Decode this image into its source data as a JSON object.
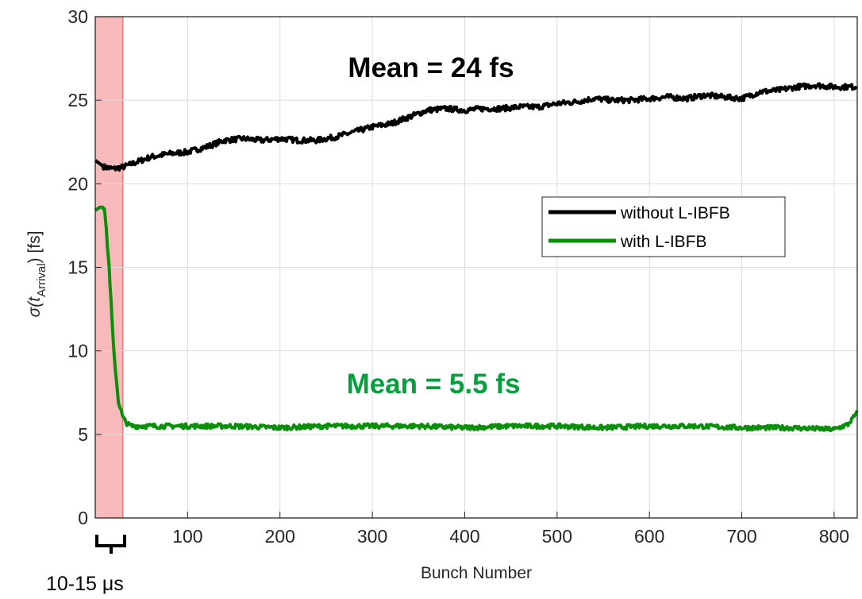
{
  "chart_data": {
    "type": "line",
    "xlabel": "Bunch Number",
    "ylabel_main": "σ(t",
    "ylabel_sub": "Arrival",
    "ylabel_end": ") [fs]",
    "xlim": [
      0,
      825
    ],
    "ylim": [
      0,
      30
    ],
    "xticks": [
      100,
      200,
      300,
      400,
      500,
      600,
      700,
      800
    ],
    "yticks": [
      0,
      5,
      10,
      15,
      20,
      25,
      30
    ],
    "grid": true,
    "legend_position": "right-middle",
    "shaded_region": {
      "x": [
        0,
        30
      ],
      "color": "#f08080",
      "label": "10-15 μs"
    },
    "annotations": [
      {
        "text": "Mean = 24 fs",
        "color": "#000000"
      },
      {
        "text": "Mean = 5.5 fs",
        "color": "#00a03c"
      }
    ],
    "series": [
      {
        "name": "without L-IBFB",
        "color": "#000000",
        "x": [
          0,
          10,
          20,
          30,
          40,
          60,
          80,
          100,
          120,
          140,
          160,
          180,
          200,
          220,
          240,
          260,
          280,
          300,
          320,
          340,
          360,
          380,
          400,
          420,
          440,
          460,
          480,
          500,
          520,
          540,
          560,
          580,
          600,
          620,
          640,
          660,
          680,
          700,
          720,
          740,
          760,
          780,
          800,
          825
        ],
        "y": [
          21.4,
          21.0,
          20.9,
          21.0,
          21.2,
          21.6,
          21.8,
          21.9,
          22.2,
          22.6,
          22.7,
          22.6,
          22.7,
          22.6,
          22.6,
          22.8,
          23.1,
          23.4,
          23.6,
          24.0,
          24.4,
          24.5,
          24.4,
          24.5,
          24.5,
          24.6,
          24.6,
          24.8,
          24.9,
          25.1,
          25.0,
          25.0,
          25.1,
          25.2,
          25.1,
          25.3,
          25.2,
          25.1,
          25.5,
          25.6,
          25.8,
          25.9,
          25.8,
          25.8
        ]
      },
      {
        "name": "with L-IBFB",
        "color": "#0a8f0a",
        "x": [
          0,
          5,
          10,
          15,
          20,
          25,
          30,
          35,
          40,
          60,
          80,
          100,
          150,
          200,
          250,
          300,
          350,
          400,
          450,
          500,
          550,
          600,
          650,
          700,
          750,
          800,
          815,
          825
        ],
        "y": [
          18.4,
          18.6,
          18.6,
          15.0,
          10.0,
          7.0,
          6.0,
          5.6,
          5.5,
          5.5,
          5.5,
          5.5,
          5.5,
          5.4,
          5.5,
          5.5,
          5.5,
          5.4,
          5.5,
          5.5,
          5.4,
          5.5,
          5.5,
          5.4,
          5.4,
          5.3,
          5.6,
          6.3
        ]
      }
    ]
  }
}
